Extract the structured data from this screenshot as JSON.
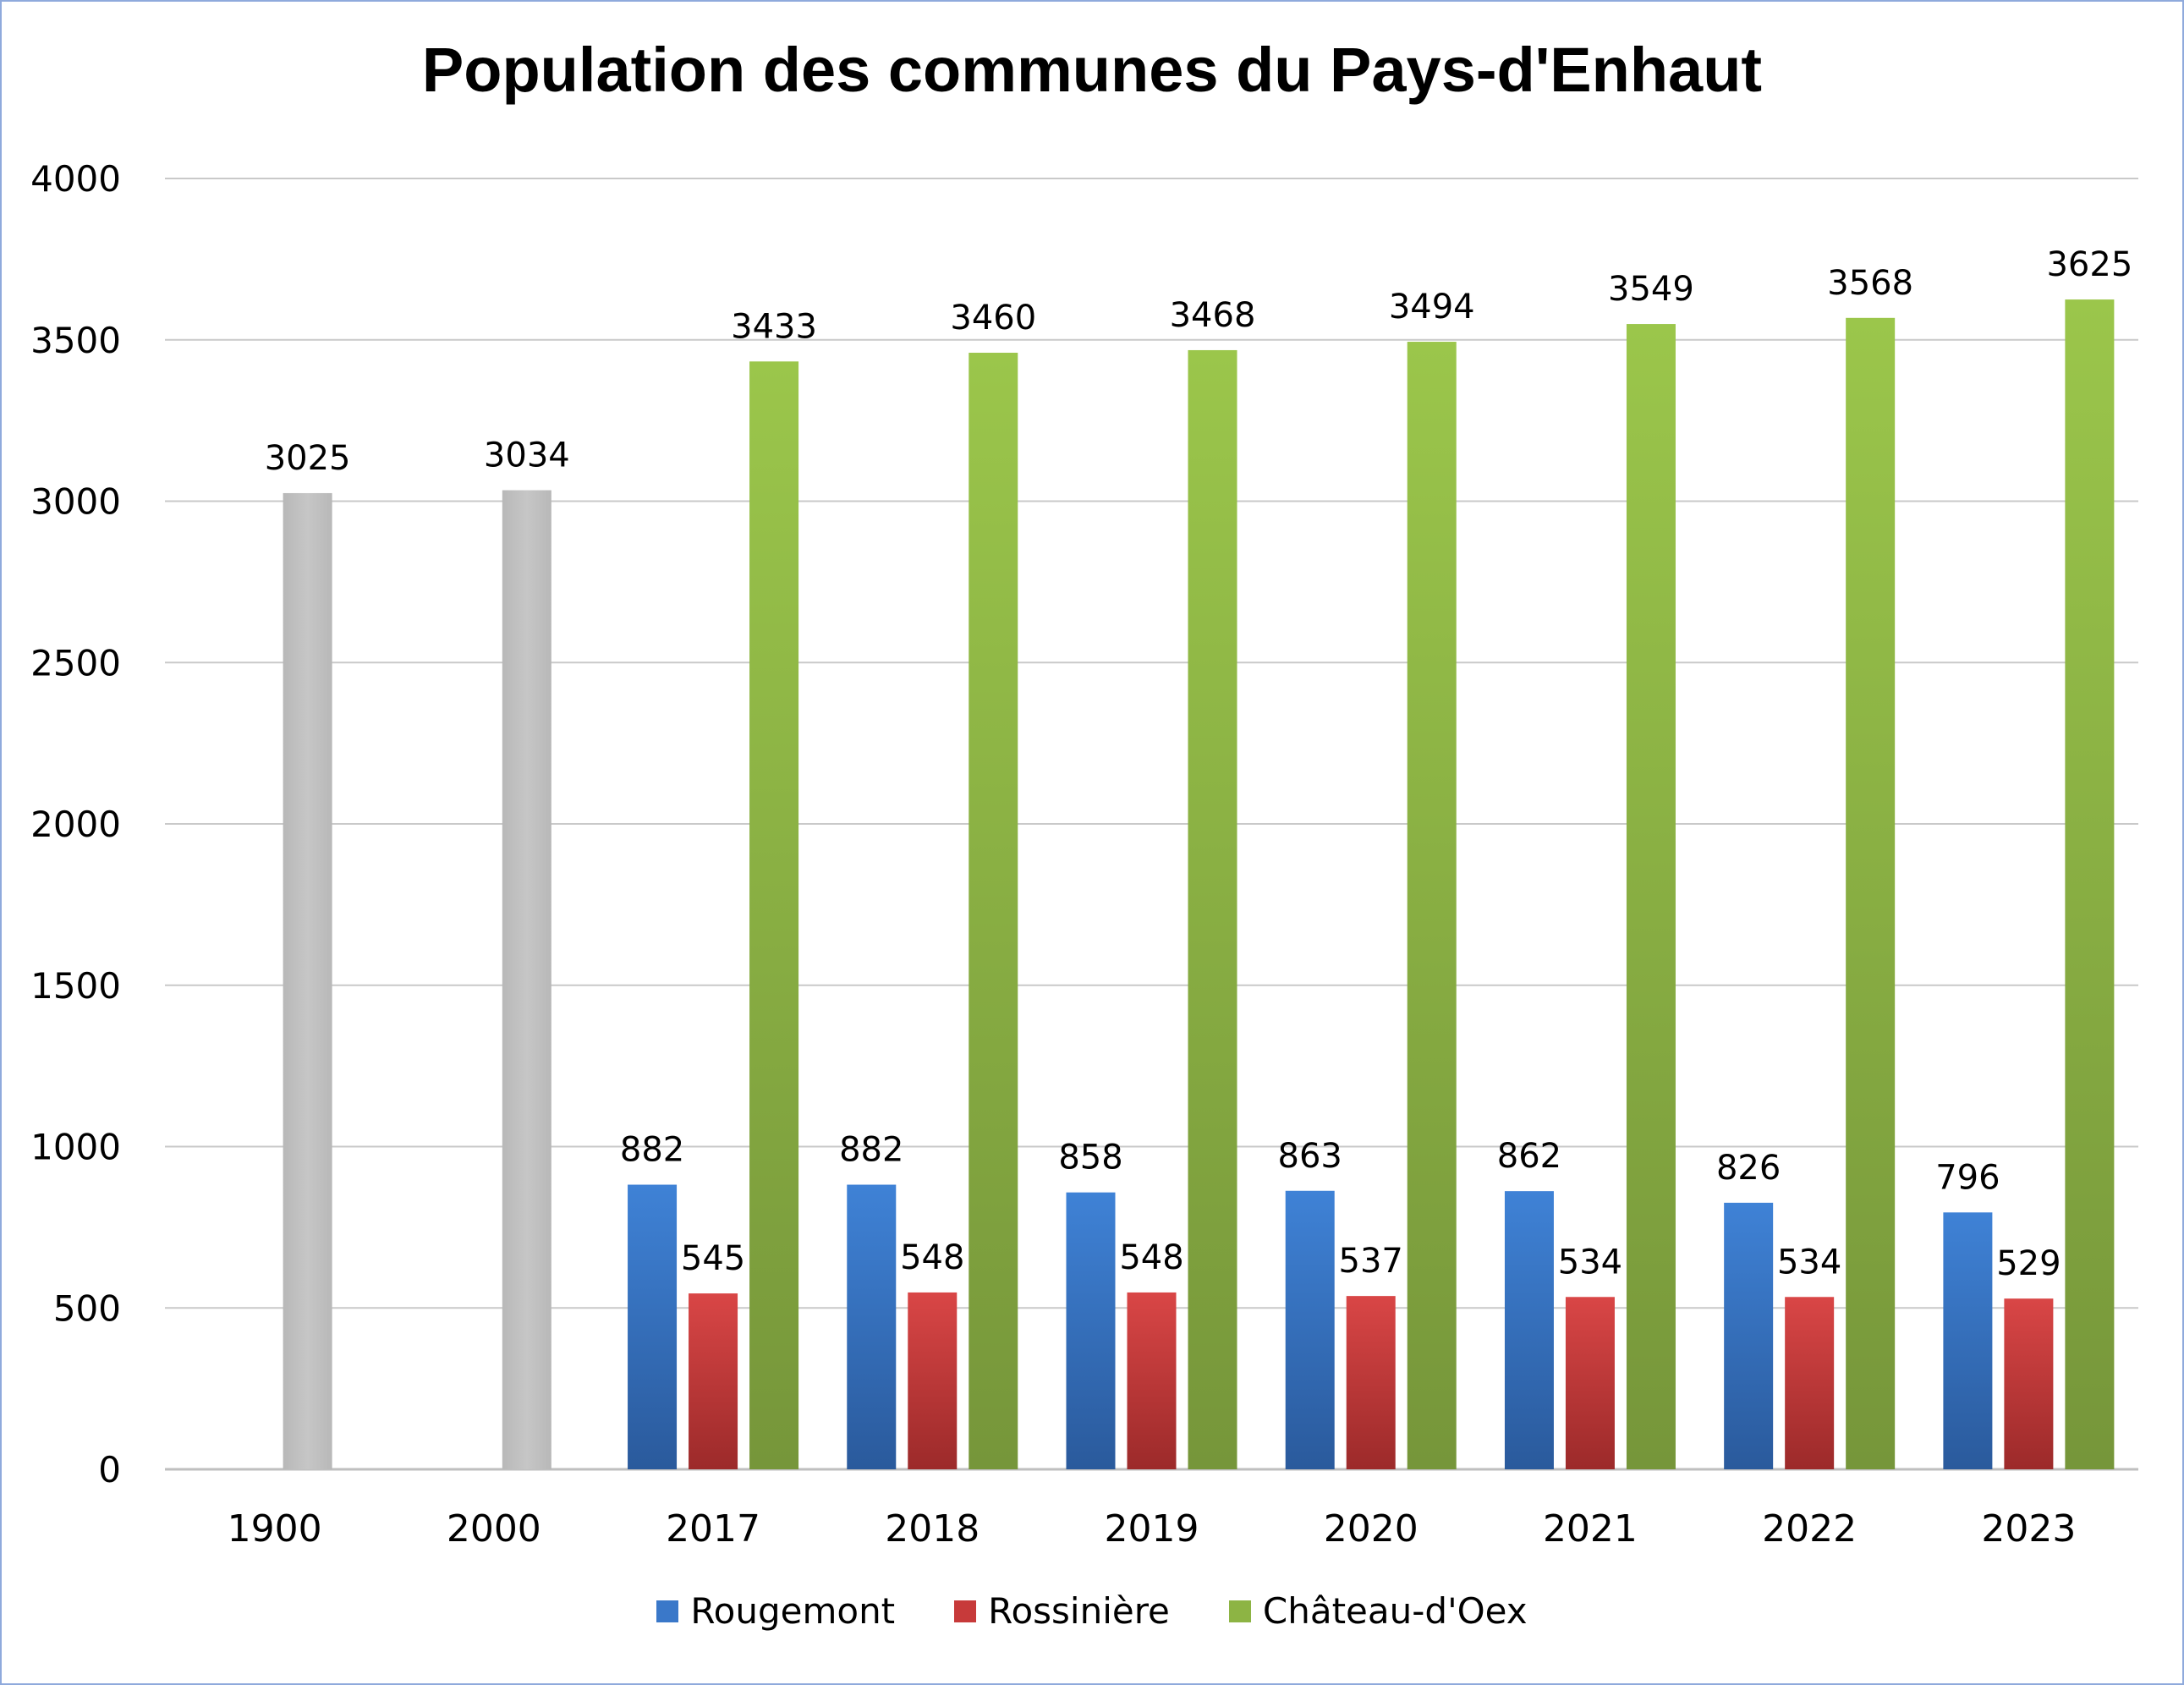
{
  "chart_data": {
    "type": "bar",
    "title": "Population des communes du Pays-d'Enhaut",
    "xlabel": "",
    "ylabel": "",
    "ylim": [
      0,
      4000
    ],
    "yticks": [
      0,
      500,
      1000,
      1500,
      2000,
      2500,
      3000,
      3500,
      4000
    ],
    "grid": true,
    "legend_position": "bottom",
    "categories": [
      "1900",
      "2000",
      "2017",
      "2018",
      "2019",
      "2020",
      "2021",
      "2022",
      "2023"
    ],
    "series": [
      {
        "name": "Rougemont",
        "color": "#3a78c9",
        "values": [
          null,
          null,
          882,
          882,
          858,
          863,
          862,
          826,
          796
        ]
      },
      {
        "name": "Rossinière",
        "color": "#c73a3a",
        "values": [
          null,
          null,
          545,
          548,
          548,
          537,
          534,
          534,
          529
        ]
      },
      {
        "name": "Château-d'Oex",
        "color": "#8db444",
        "values": [
          null,
          null,
          3433,
          3460,
          3468,
          3494,
          3549,
          3568,
          3625
        ]
      },
      {
        "name": "",
        "color": "#bfbfbf",
        "values": [
          3025,
          3034,
          null,
          null,
          null,
          null,
          null,
          null,
          null
        ]
      }
    ]
  }
}
